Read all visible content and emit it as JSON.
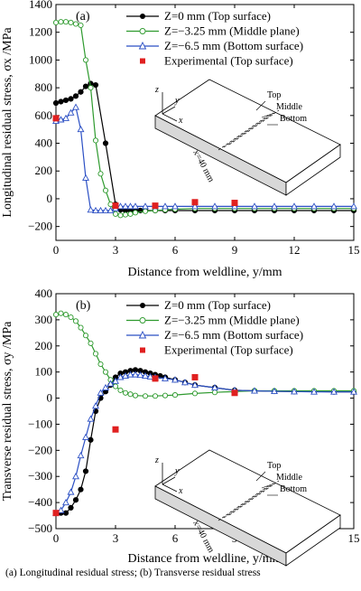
{
  "caption": "(a)    Longitudinal    residual    stress; (b) Transverse residual stress",
  "colors": {
    "top": "#000000",
    "middle": "#2e9a2e",
    "bottom": "#2b4fc4",
    "experimental": "#e02020"
  },
  "chart_data": [
    {
      "type": "line",
      "panel_label": "(a)",
      "xlabel": "Distance from weldline, y/mm",
      "ylabel": "Longitudinal residual stress, σx /MPa",
      "xlim": [
        0,
        15
      ],
      "ylim": [
        -300,
        1400
      ],
      "xticks": [
        0,
        3,
        6,
        9,
        12,
        15
      ],
      "yticks": [
        -200,
        0,
        200,
        400,
        600,
        800,
        1000,
        1200,
        1400
      ],
      "legend_position": "top-right",
      "series": [
        {
          "name": "Z=0 mm (Top surface)",
          "marker": "filled-circle",
          "x": [
            0,
            0.25,
            0.5,
            0.75,
            1,
            1.25,
            1.5,
            1.75,
            2,
            2.5,
            3,
            3.25,
            3.5,
            3.75,
            4,
            4.25,
            4.5,
            5,
            5.5,
            6,
            7,
            8,
            9,
            10,
            11,
            12,
            13,
            14,
            15
          ],
          "y": [
            690,
            700,
            710,
            720,
            740,
            770,
            810,
            830,
            820,
            400,
            -40,
            -80,
            -85,
            -85,
            -85,
            -85,
            -85,
            -85,
            -85,
            -85,
            -85,
            -85,
            -85,
            -85,
            -85,
            -85,
            -85,
            -85,
            -85
          ]
        },
        {
          "name": "Z=−3.25 mm (Middle plane)",
          "marker": "open-circle",
          "x": [
            0,
            0.25,
            0.5,
            0.75,
            1,
            1.25,
            1.5,
            1.75,
            2,
            2.25,
            2.5,
            2.75,
            3,
            3.25,
            3.5,
            3.75,
            4,
            4.5,
            5,
            5.5,
            6,
            7,
            8,
            9,
            10,
            11,
            12,
            13,
            14,
            15
          ],
          "y": [
            1270,
            1275,
            1275,
            1270,
            1260,
            1250,
            1000,
            800,
            420,
            180,
            60,
            -40,
            -110,
            -120,
            -115,
            -110,
            -100,
            -90,
            -85,
            -80,
            -75,
            -70,
            -70,
            -70,
            -70,
            -70,
            -70,
            -70,
            -70,
            -70
          ]
        },
        {
          "name": "Z=−6.5 mm (Bottom surface)",
          "marker": "open-triangle",
          "x": [
            0,
            0.25,
            0.5,
            0.75,
            1,
            1.25,
            1.5,
            1.75,
            2,
            2.25,
            2.5,
            2.75,
            3,
            3.25,
            3.5,
            3.75,
            4,
            4.5,
            5,
            5.5,
            6,
            7,
            8,
            9,
            10,
            11,
            12,
            13,
            14,
            15
          ],
          "y": [
            560,
            570,
            580,
            620,
            660,
            500,
            150,
            -80,
            -85,
            -85,
            -85,
            -85,
            -70,
            -55,
            -55,
            -55,
            -55,
            -55,
            -55,
            -55,
            -55,
            -55,
            -55,
            -55,
            -55,
            -55,
            -55,
            -55,
            -55,
            -55
          ]
        },
        {
          "name": "Experimental (Top surface)",
          "marker": "square",
          "x": [
            0,
            3,
            5,
            7,
            9
          ],
          "y": [
            580,
            -50,
            -50,
            -25,
            -30
          ]
        }
      ],
      "inset_labels": {
        "z": "z",
        "y": "y",
        "x": "x",
        "top": "Top",
        "middle": "Middle",
        "bottom": "Bottom",
        "dim": "x=40 mm"
      }
    },
    {
      "type": "line",
      "panel_label": "(b)",
      "xlabel": "Distance from weldline, y/mm",
      "ylabel": "Transverse residual stress, σy /MPa",
      "xlim": [
        0,
        15
      ],
      "ylim": [
        -500,
        400
      ],
      "xticks": [
        0,
        3,
        6,
        9,
        12,
        15
      ],
      "yticks": [
        -500,
        -400,
        -300,
        -200,
        -100,
        0,
        100,
        200,
        300,
        400
      ],
      "legend_position": "top-right",
      "series": [
        {
          "name": "Z=0 mm (Top surface)",
          "marker": "filled-circle",
          "x": [
            0,
            0.25,
            0.5,
            0.75,
            1,
            1.25,
            1.5,
            1.75,
            2,
            2.25,
            2.5,
            2.75,
            3,
            3.25,
            3.5,
            3.75,
            4,
            4.25,
            4.5,
            4.75,
            5,
            5.25,
            5.5,
            6,
            6.5,
            7,
            8,
            9,
            10,
            11,
            12,
            13,
            14,
            15
          ],
          "y": [
            -440,
            -440,
            -440,
            -420,
            -390,
            -350,
            -280,
            -160,
            -50,
            0,
            25,
            50,
            80,
            95,
            100,
            105,
            108,
            105,
            100,
            95,
            90,
            85,
            80,
            70,
            60,
            50,
            40,
            30,
            28,
            26,
            25,
            25,
            24,
            24
          ]
        },
        {
          "name": "Z=−3.25 mm (Middle plane)",
          "marker": "open-circle",
          "x": [
            0,
            0.25,
            0.5,
            0.75,
            1,
            1.25,
            1.5,
            1.75,
            2,
            2.25,
            2.5,
            2.75,
            3,
            3.25,
            3.5,
            3.75,
            4,
            4.5,
            5,
            5.5,
            6,
            7,
            8,
            9,
            10,
            11,
            12,
            13,
            14,
            15
          ],
          "y": [
            320,
            325,
            320,
            310,
            295,
            270,
            240,
            210,
            170,
            130,
            100,
            70,
            45,
            30,
            20,
            15,
            10,
            8,
            8,
            10,
            12,
            18,
            22,
            25,
            28,
            28,
            28,
            28,
            28,
            28
          ]
        },
        {
          "name": "Z=−6.5 mm (Bottom surface)",
          "marker": "open-triangle",
          "x": [
            0,
            0.25,
            0.5,
            0.75,
            1,
            1.25,
            1.5,
            1.75,
            2,
            2.25,
            2.5,
            2.75,
            3,
            3.25,
            3.5,
            3.75,
            4,
            4.25,
            4.5,
            4.75,
            5,
            5.5,
            6,
            6.5,
            7,
            8,
            9,
            10,
            11,
            12,
            13,
            14,
            15
          ],
          "y": [
            -440,
            -430,
            -400,
            -360,
            -300,
            -220,
            -150,
            -80,
            -30,
            20,
            40,
            55,
            65,
            80,
            85,
            90,
            90,
            88,
            85,
            82,
            80,
            75,
            70,
            60,
            50,
            40,
            30,
            28,
            26,
            25,
            24,
            24,
            24
          ]
        },
        {
          "name": "Experimental (Top surface)",
          "marker": "square",
          "x": [
            0,
            3,
            5,
            7,
            9
          ],
          "y": [
            -440,
            -120,
            75,
            80,
            20
          ]
        }
      ],
      "inset_labels": {
        "z": "z",
        "y": "y",
        "x": "x",
        "top": "Top",
        "middle": "Middle",
        "bottom": "Bottom",
        "dim": "x=40 mm"
      }
    }
  ]
}
